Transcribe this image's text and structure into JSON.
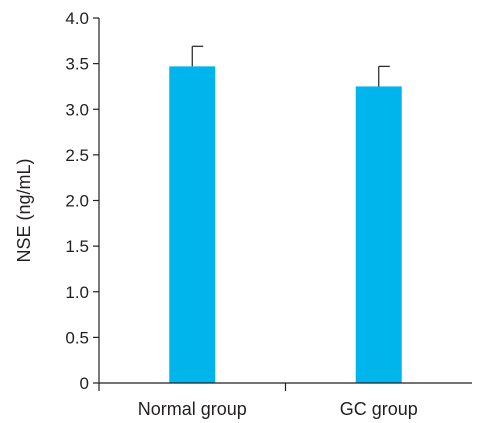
{
  "chart_data": {
    "type": "bar",
    "categories": [
      "Normal group",
      "GC group"
    ],
    "values": [
      3.47,
      3.25
    ],
    "error_upper": [
      0.22,
      0.22
    ],
    "ylabel": "NSE (ng/mL)",
    "xlabel": "",
    "ylim": [
      0,
      4.0
    ],
    "yticks": [
      "0",
      "0.5",
      "1.0",
      "1.5",
      "2.0",
      "2.5",
      "3.0",
      "3.5",
      "4.0"
    ],
    "grid": false,
    "bar_color": "#00b5ec"
  }
}
